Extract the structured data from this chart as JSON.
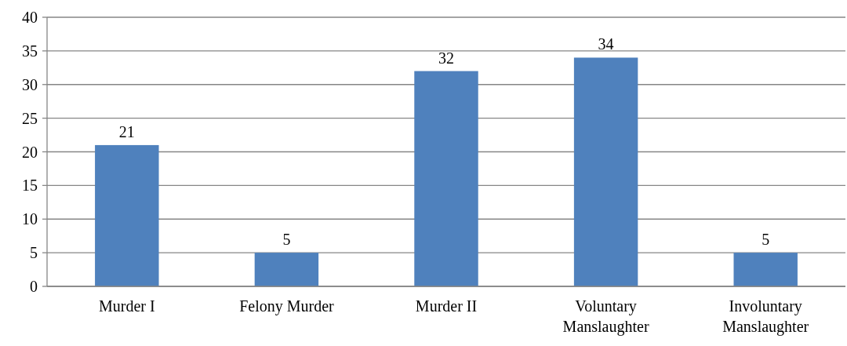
{
  "chart_data": {
    "type": "bar",
    "categories": [
      "Murder I",
      "Felony Murder",
      "Murder II",
      "Voluntary Manslaughter",
      "Involuntary Manslaughter"
    ],
    "values": [
      21,
      5,
      32,
      34,
      5
    ],
    "color": "#4f81bd",
    "ylim": [
      0,
      40
    ],
    "yticks": [
      0,
      5,
      10,
      15,
      20,
      25,
      30,
      35,
      40
    ],
    "grid": "y",
    "data_labels": true
  }
}
